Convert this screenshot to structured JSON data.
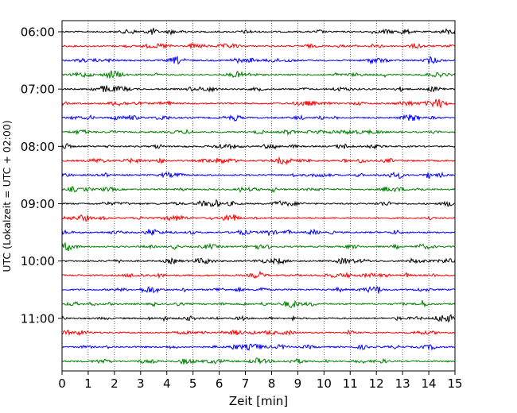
{
  "chart_data": {
    "type": "line",
    "title": "",
    "xlabel": "Zeit  [min]",
    "ylabel": "UTC (Lokalzeit = UTC + 02:00)",
    "xlim": [
      0,
      15
    ],
    "x_ticks": [
      "0",
      "1",
      "2",
      "3",
      "4",
      "5",
      "6",
      "7",
      "8",
      "9",
      "10",
      "11",
      "12",
      "13",
      "14",
      "15"
    ],
    "y_tick_labels": [
      "06:00",
      "07:00",
      "08:00",
      "09:00",
      "10:00",
      "11:00"
    ],
    "grid_x": true,
    "grid_style": "dotted",
    "trace_interval_minutes": 15,
    "first_trace": "06:00",
    "trace_count": 24,
    "trace_colors": [
      "#000000",
      "#ff0000",
      "#0000ff",
      "#008000"
    ],
    "note": "Helicorder plot: each row is one 15-minute seismometer trace of low-amplitude noise; colours cycle black, red, blue, green per hour."
  }
}
